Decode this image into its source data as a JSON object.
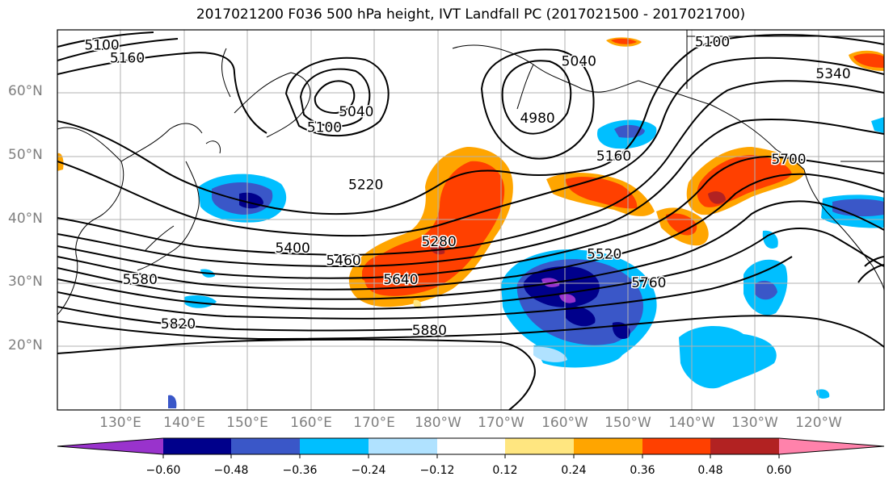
{
  "title": "2017021200 F036 500 hPa height, IVT Landfall PC (2017021500 - 2017021700)",
  "lat_labels": [
    "60°N",
    "50°N",
    "40°N",
    "30°N",
    "20°N"
  ],
  "lon_labels": [
    "130°E",
    "140°E",
    "150°E",
    "160°E",
    "170°E",
    "180°W",
    "170°W",
    "160°W",
    "150°W",
    "140°W",
    "130°W",
    "120°W"
  ],
  "map_extent": {
    "lon_min": 120,
    "lon_max": 250,
    "lat_min": 10,
    "lat_max": 70
  },
  "height_contour_labels": [
    {
      "text": "5100",
      "lon": 127,
      "lat": 67.5
    },
    {
      "text": "5160",
      "lon": 131,
      "lat": 65.5
    },
    {
      "text": "5100",
      "lon": 162,
      "lat": 54.5
    },
    {
      "text": "5040",
      "lon": 167,
      "lat": 57
    },
    {
      "text": "5040",
      "lon": 202,
      "lat": 65
    },
    {
      "text": "4980",
      "lon": 195.5,
      "lat": 56
    },
    {
      "text": "5100",
      "lon": 223,
      "lat": 68
    },
    {
      "text": "5340",
      "lon": 242,
      "lat": 63
    },
    {
      "text": "5160",
      "lon": 207.5,
      "lat": 50
    },
    {
      "text": "5700",
      "lon": 235,
      "lat": 49.5
    },
    {
      "text": "5220",
      "lon": 168.5,
      "lat": 45.5
    },
    {
      "text": "5280",
      "lon": 180,
      "lat": 36.5
    },
    {
      "text": "5400",
      "lon": 157,
      "lat": 35.5
    },
    {
      "text": "5460",
      "lon": 165,
      "lat": 33.5
    },
    {
      "text": "5520",
      "lon": 206,
      "lat": 34.5
    },
    {
      "text": "5580",
      "lon": 133,
      "lat": 30.5
    },
    {
      "text": "5640",
      "lon": 174,
      "lat": 30.5
    },
    {
      "text": "5760",
      "lon": 213,
      "lat": 30
    },
    {
      "text": "5820",
      "lon": 139,
      "lat": 23.5
    },
    {
      "text": "5880",
      "lon": 178.5,
      "lat": 22.5
    }
  ],
  "colorbar": {
    "ticks": [
      "−0.60",
      "−0.48",
      "−0.36",
      "−0.24",
      "−0.12",
      "0.12",
      "0.24",
      "0.36",
      "0.48",
      "0.60"
    ],
    "colors": [
      "#9933cc",
      "#00008b",
      "#3a57c8",
      "#00bfff",
      "#b0e2ff",
      "#ffffff",
      "#ffe680",
      "#ffa500",
      "#ff4000",
      "#b22222",
      "#ff82ab"
    ]
  }
}
